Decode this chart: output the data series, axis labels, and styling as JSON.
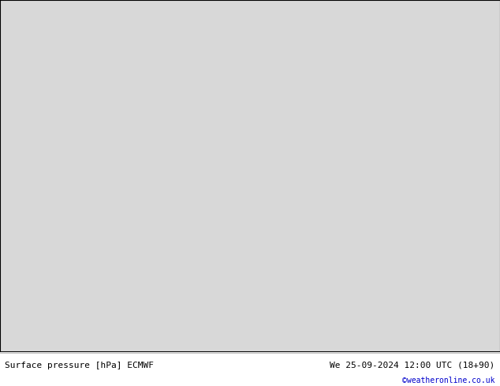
{
  "footer_left": "Surface pressure [hPa] ECMWF",
  "footer_right": "We 25-09-2024 12:00 UTC (18+90)",
  "footer_credit": "©weatheronline.co.uk",
  "bg_color": "#e0e0e0",
  "land_color": "#aadd88",
  "fig_width": 6.34,
  "fig_height": 4.9,
  "dpi": 100,
  "footer_color": "#000000",
  "credit_color": "#0000cc",
  "ocean_color": "#d8d8d8",
  "extent": [
    -115,
    -15,
    -72,
    22
  ],
  "grid_lons": 200,
  "grid_lats": 200,
  "label_fontsize": 6,
  "contour_lw_black": 1.2,
  "contour_lw_color": 0.8,
  "pressure_centers": [
    {
      "lon": -25,
      "lat": -32,
      "strength": 18,
      "sx": 28,
      "sy": 22,
      "sign": 1
    },
    {
      "lon": -88,
      "lat": -32,
      "strength": 16,
      "sx": 22,
      "sy": 18,
      "sign": 1
    },
    {
      "lon": -88,
      "lat": -42,
      "strength": 6,
      "sx": 18,
      "sy": 12,
      "sign": 1
    },
    {
      "lon": -62,
      "lat": -58,
      "strength": -18,
      "sx": 18,
      "sy": 12,
      "sign": -1
    },
    {
      "lon": -55,
      "lat": -65,
      "strength": -28,
      "sx": 22,
      "sy": 14,
      "sign": -1
    },
    {
      "lon": -30,
      "lat": -65,
      "strength": -20,
      "sx": 18,
      "sy": 12,
      "sign": -1
    },
    {
      "lon": -75,
      "lat": -25,
      "strength": -6,
      "sx": 8,
      "sy": 22,
      "sign": -1
    },
    {
      "lon": -73,
      "lat": -10,
      "strength": -4,
      "sx": 6,
      "sy": 18,
      "sign": -1
    },
    {
      "lon": -75,
      "lat": 10,
      "strength": -5,
      "sx": 15,
      "sy": 10,
      "sign": -1
    },
    {
      "lon": -50,
      "lat": -12,
      "strength": -5,
      "sx": 15,
      "sy": 12,
      "sign": -1
    },
    {
      "lon": -45,
      "lat": -15,
      "strength": -4,
      "sx": 12,
      "sy": 10,
      "sign": -1
    },
    {
      "lon": -60,
      "lat": -43,
      "strength": -6,
      "sx": 10,
      "sy": 8,
      "sign": -1
    },
    {
      "lon": -65,
      "lat": -48,
      "strength": -4,
      "sx": 8,
      "sy": 6,
      "sign": -1
    },
    {
      "lon": -115,
      "lat": -15,
      "strength": 8,
      "sx": 20,
      "sy": 20,
      "sign": 1
    },
    {
      "lon": -15,
      "lat": -22,
      "strength": 12,
      "sx": 18,
      "sy": 16,
      "sign": 1
    },
    {
      "lon": -15,
      "lat": 5,
      "strength": 4,
      "sx": 15,
      "sy": 12,
      "sign": 1
    },
    {
      "lon": -40,
      "lat": -62,
      "strength": -8,
      "sx": 15,
      "sy": 10,
      "sign": -1
    },
    {
      "lon": -95,
      "lat": -58,
      "strength": 4,
      "sx": 15,
      "sy": 12,
      "sign": 1
    }
  ]
}
